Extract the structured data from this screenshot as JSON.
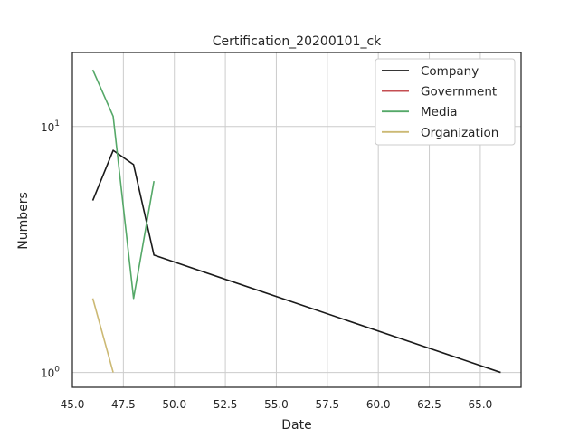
{
  "chart_data": {
    "type": "line",
    "title": "Certification_20200101_ck",
    "xlabel": "Date",
    "ylabel": "Numbers",
    "yscale": "log",
    "xlim": [
      45.0,
      67.0
    ],
    "ylim": [
      0.87,
      20
    ],
    "xticks": [
      "45.0",
      "47.5",
      "50.0",
      "52.5",
      "55.0",
      "57.5",
      "60.0",
      "62.5",
      "65.0"
    ],
    "yticks": [
      {
        "value": 1,
        "base": "10",
        "exp": "0"
      },
      {
        "value": 10,
        "base": "10",
        "exp": "1"
      }
    ],
    "grid": true,
    "legend_position": "top-right",
    "series": [
      {
        "name": "Company",
        "color": "#1a1a1a",
        "x": [
          46,
          47,
          48,
          49,
          66
        ],
        "y": [
          5,
          8,
          7,
          3,
          1
        ]
      },
      {
        "name": "Government",
        "color": "#c44e52",
        "x": [],
        "y": []
      },
      {
        "name": "Media",
        "color": "#55a868",
        "x": [
          46,
          47,
          48,
          49
        ],
        "y": [
          17,
          11,
          2,
          6
        ]
      },
      {
        "name": "Organization",
        "color": "#ccb974",
        "x": [
          46,
          47
        ],
        "y": [
          2,
          1
        ]
      }
    ]
  }
}
